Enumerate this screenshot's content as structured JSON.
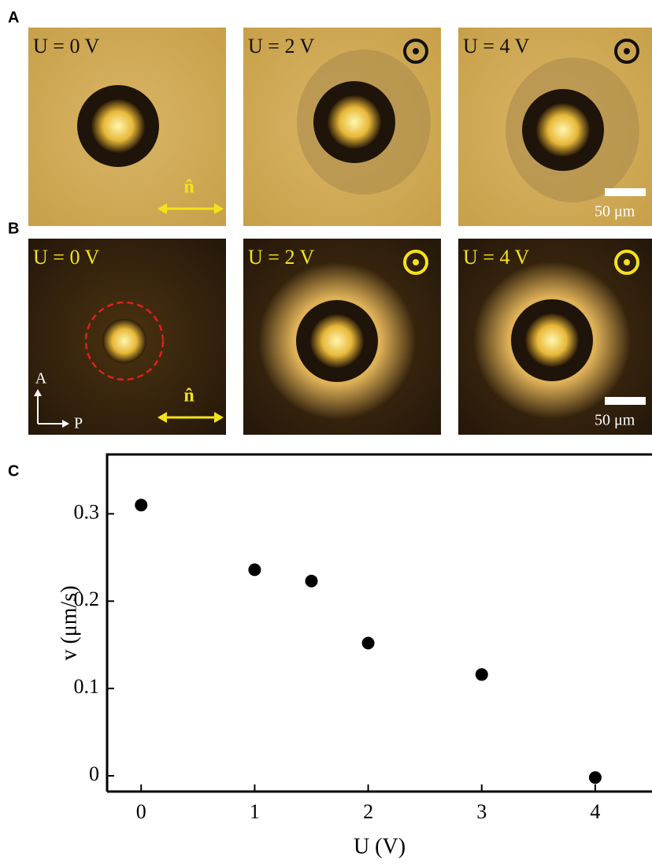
{
  "panels": [
    {
      "label": "A",
      "images": [
        {
          "voltage_label": "U = 0 V"
        },
        {
          "voltage_label": "U = 2 V"
        },
        {
          "voltage_label": "U = 4 V"
        }
      ],
      "director_label": "n̂",
      "scale_label": "50 μm"
    },
    {
      "label": "B",
      "images": [
        {
          "voltage_label": "U = 0 V"
        },
        {
          "voltage_label": "U = 2 V"
        },
        {
          "voltage_label": "U = 4 V"
        }
      ],
      "director_label": "n̂",
      "scale_label": "50 μm",
      "polarizer_labels": [
        "A",
        "P"
      ]
    }
  ],
  "chart_data": {
    "label": "C",
    "type": "scatter",
    "x": [
      0,
      1,
      1.5,
      2,
      3,
      4
    ],
    "values": [
      0.31,
      0.236,
      0.223,
      0.152,
      0.116,
      -0.002
    ],
    "color": "#000000",
    "x_label": "U (V)",
    "y_label": "v (μm/s)",
    "xlim": [
      -0.3,
      4.5
    ],
    "ylim": [
      -0.018,
      0.368
    ],
    "xticks": [
      0,
      1,
      2,
      3,
      4
    ],
    "yticks": [
      0,
      0.1,
      0.2,
      0.3
    ]
  }
}
